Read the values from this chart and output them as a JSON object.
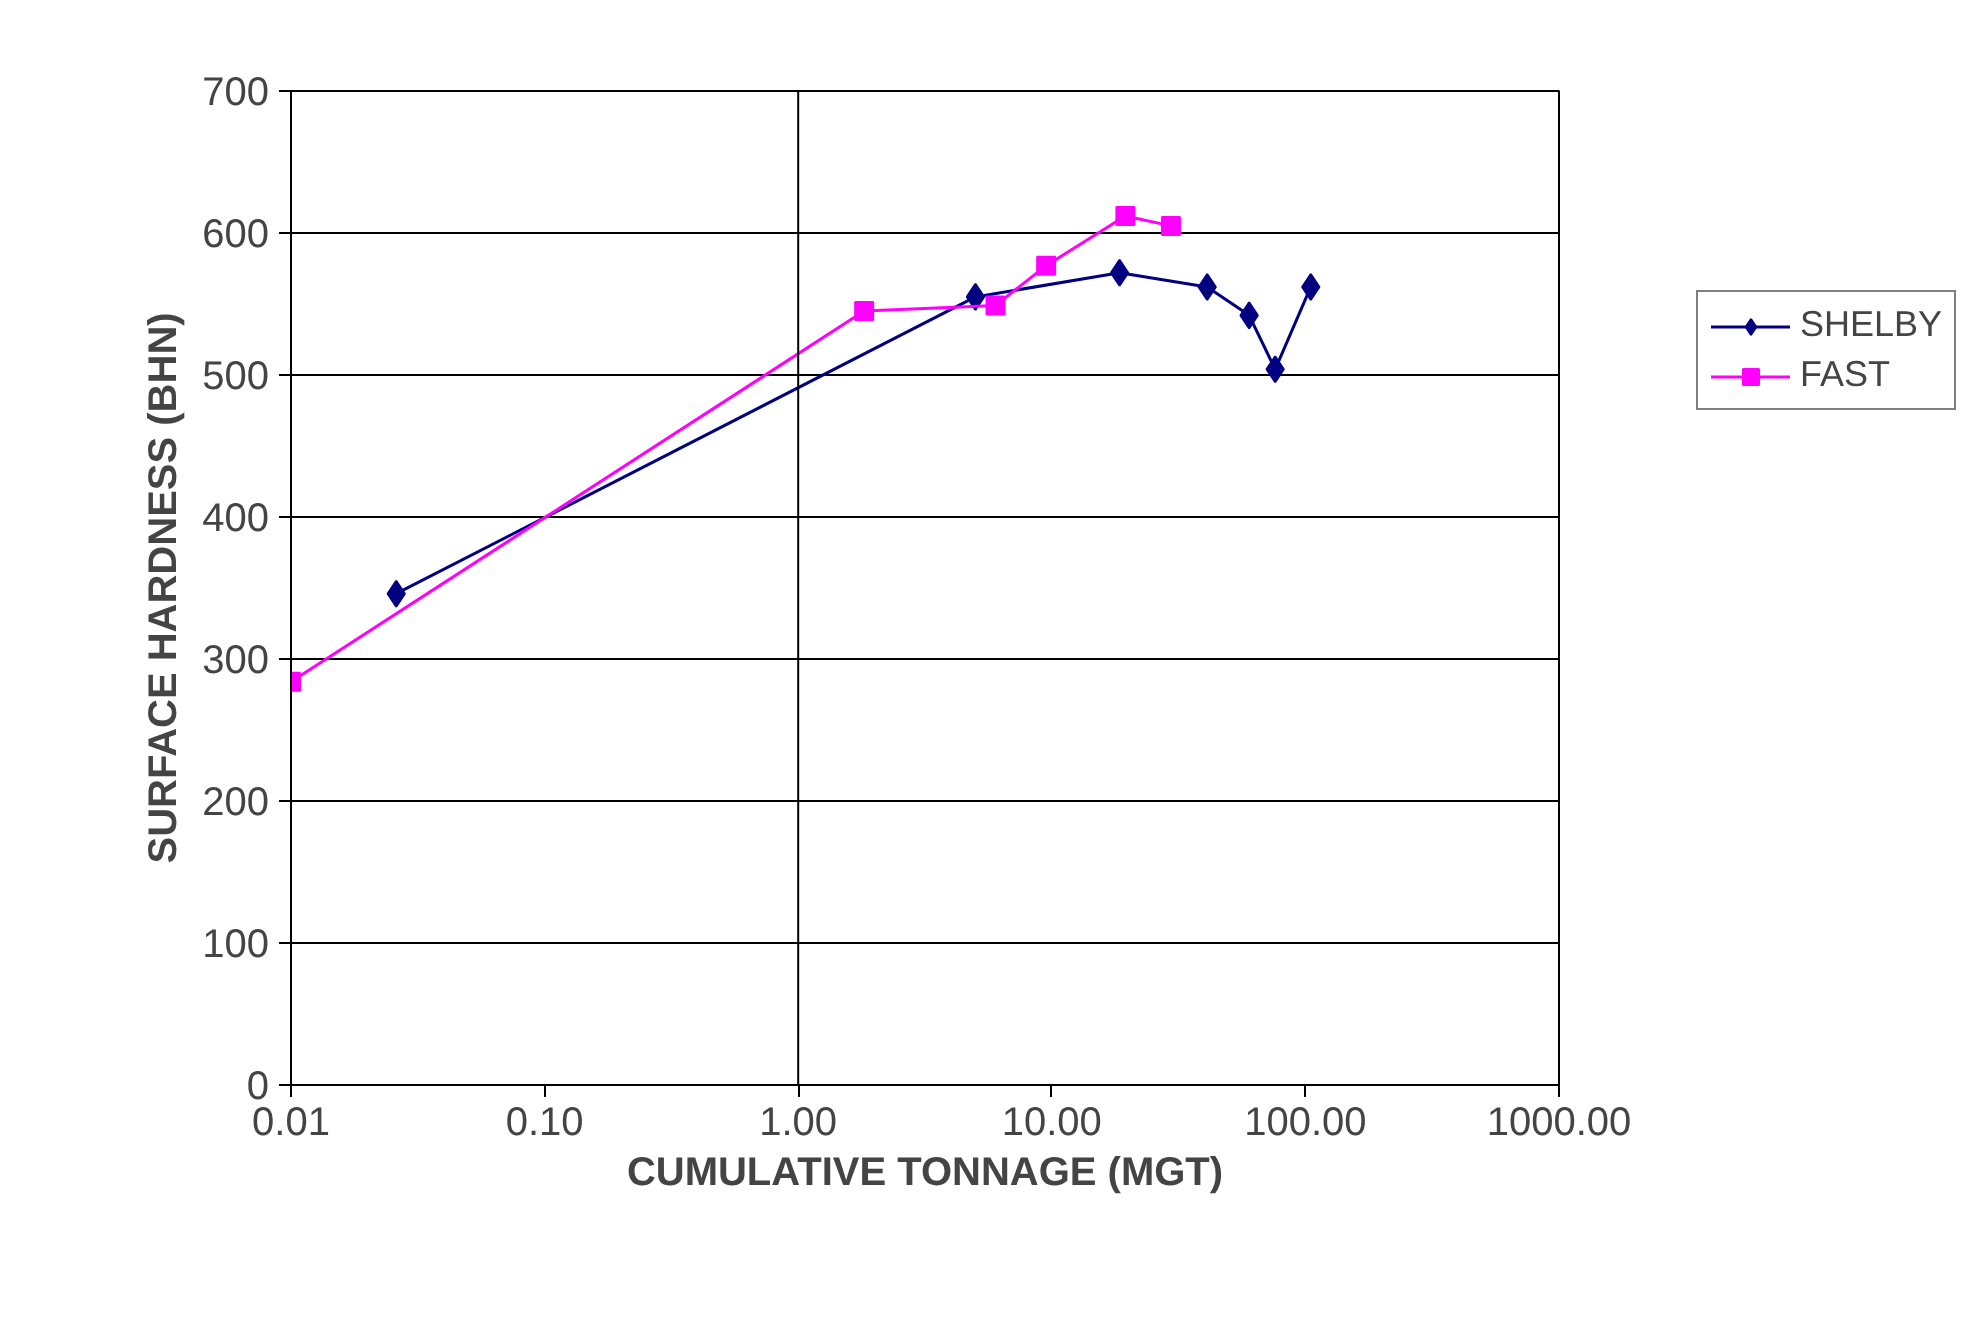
{
  "chart_data": {
    "type": "line",
    "xlabel": "CUMULATIVE TONNAGE (MGT)",
    "ylabel": "SURFACE HARDNESS (BHN)",
    "log": "x",
    "xlim": [
      0.01,
      1000
    ],
    "xticks": [
      {
        "value": 0.01,
        "label": "0.01"
      },
      {
        "value": 0.1,
        "label": "0.10"
      },
      {
        "value": 1,
        "label": "1.00"
      },
      {
        "value": 10,
        "label": "10.00"
      },
      {
        "value": 100,
        "label": "100.00"
      },
      {
        "value": 1000,
        "label": "1000.00"
      }
    ],
    "ylim": [
      0,
      700
    ],
    "yticks": [
      0,
      100,
      200,
      300,
      400,
      500,
      600,
      700
    ],
    "grid": "y",
    "legend": "right",
    "ref_lines": [
      {
        "axis": "x",
        "value": 1,
        "color": "#000000"
      }
    ],
    "series": [
      {
        "name": "SHELBY",
        "color": "#000080",
        "marker": "diamond",
        "x": [
          0.026,
          5.0,
          18.5,
          41,
          60,
          76,
          105
        ],
        "values": [
          346,
          555,
          572,
          562,
          542,
          504,
          562
        ]
      },
      {
        "name": "FAST",
        "color": "#ff00ff",
        "marker": "square",
        "x": [
          0.01,
          1.82,
          6.0,
          9.5,
          19.5,
          29.5
        ],
        "values": [
          284,
          545,
          549,
          577,
          612,
          605
        ]
      }
    ]
  }
}
